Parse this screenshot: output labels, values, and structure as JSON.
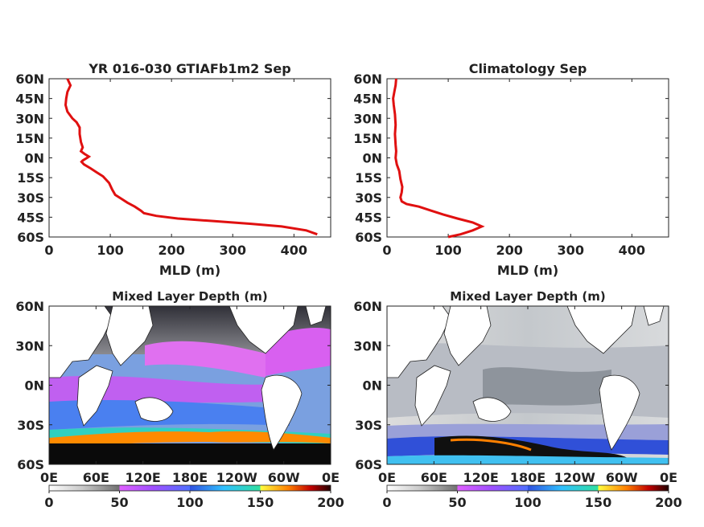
{
  "chart_data": [
    {
      "type": "line",
      "title": "YR 016-030 GTIAFb1m2 Sep",
      "xlabel": "MLD (m)",
      "ylabel": "",
      "xlim": [
        0,
        460
      ],
      "ylim": [
        -60,
        60
      ],
      "xticks": [
        "0",
        "100",
        "200",
        "300",
        "400"
      ],
      "yticks": [
        "60N",
        "45N",
        "30N",
        "15N",
        "0N",
        "15S",
        "30S",
        "45S",
        "60S"
      ],
      "line_color": "#e01010",
      "series": [
        {
          "x": [
            30,
            35,
            30,
            28,
            27,
            30,
            38,
            45,
            50,
            50,
            52,
            55,
            52,
            58,
            65,
            62,
            55,
            53,
            57,
            68,
            78,
            88,
            98,
            103,
            108,
            118,
            128,
            140,
            150,
            155,
            175,
            210,
            270,
            330,
            380,
            420,
            438
          ],
          "y": [
            60,
            55,
            50,
            45,
            40,
            35,
            30,
            27,
            23,
            18,
            12,
            8,
            5,
            3,
            1,
            0,
            -2,
            -3,
            -5,
            -8,
            -11,
            -14,
            -19,
            -24,
            -28,
            -31,
            -34,
            -37,
            -40,
            -42,
            -44,
            -46,
            -48,
            -50,
            -52,
            -55,
            -58
          ]
        }
      ]
    },
    {
      "type": "line",
      "title": "Climatology Sep",
      "xlabel": "MLD (m)",
      "ylabel": "",
      "xlim": [
        0,
        460
      ],
      "ylim": [
        -60,
        60
      ],
      "xticks": [
        "0",
        "100",
        "200",
        "300",
        "400"
      ],
      "yticks": [
        "60N",
        "45N",
        "30N",
        "15N",
        "0N",
        "15S",
        "30S",
        "45S",
        "60S"
      ],
      "line_color": "#e01010",
      "series": [
        {
          "x": [
            15,
            14,
            12,
            10,
            11,
            13,
            14,
            13,
            14,
            15,
            14,
            16,
            20,
            22,
            25,
            24,
            22,
            24,
            32,
            52,
            72,
            92,
            115,
            140,
            155,
            140,
            120,
            100
          ],
          "y": [
            60,
            55,
            50,
            45,
            40,
            33,
            25,
            18,
            10,
            5,
            0,
            -5,
            -10,
            -16,
            -22,
            -26,
            -30,
            -33,
            -35,
            -37,
            -40,
            -43,
            -46,
            -49,
            -52,
            -55,
            -58,
            -60
          ]
        }
      ]
    },
    {
      "type": "heatmap",
      "title": "Mixed Layer Depth (m)",
      "xticks": [
        "0E",
        "60E",
        "120E",
        "180E",
        "120W",
        "60W",
        "0E"
      ],
      "yticks": [
        "60N",
        "30N",
        "0N",
        "30S",
        "60S"
      ],
      "colorbar": {
        "ticks": [
          "0",
          "50",
          "100",
          "150",
          "200"
        ],
        "range": [
          0,
          200
        ]
      }
    },
    {
      "type": "heatmap",
      "title": "Mixed Layer Depth (m)",
      "xticks": [
        "0E",
        "60E",
        "120E",
        "180E",
        "120W",
        "60W",
        "0E"
      ],
      "yticks": [
        "60N",
        "30N",
        "0N",
        "30S",
        "60S"
      ],
      "colorbar": {
        "ticks": [
          "0",
          "50",
          "100",
          "150",
          "200"
        ],
        "range": [
          0,
          200
        ]
      }
    }
  ]
}
